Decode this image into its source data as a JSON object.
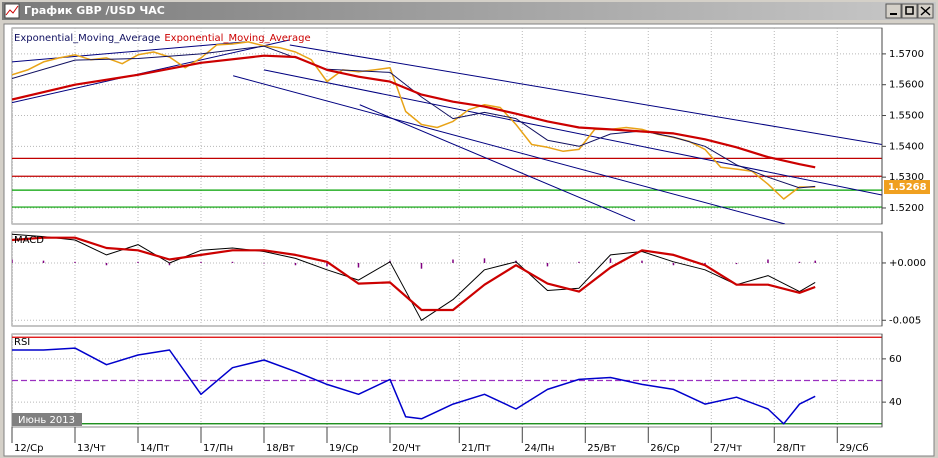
{
  "window": {
    "title": "График GBP /USD ЧАС"
  },
  "period_label": "Июнь 2013",
  "chart_data": [
    {
      "type": "line",
      "xlim": [
        0,
        13.81
      ],
      "ylim": [
        1.5148,
        1.5784
      ],
      "yticks": [
        {
          "value": 1.52,
          "label": "1.5200"
        },
        {
          "value": 1.53,
          "label": "1.5300"
        },
        {
          "value": 1.54,
          "label": "1.5400"
        },
        {
          "value": 1.55,
          "label": "1.5500"
        },
        {
          "value": 1.56,
          "label": "1.5600"
        },
        {
          "value": 1.57,
          "label": "1.5700"
        }
      ],
      "grid": true,
      "last_price": 1.5268,
      "levels": [
        {
          "value": 1.5361,
          "color": "#c00000"
        },
        {
          "value": 1.5303,
          "color": "#c00000"
        },
        {
          "value": 1.5258,
          "color": "#00a000"
        },
        {
          "value": 1.5203,
          "color": "#00a000"
        }
      ],
      "trend_lines": [
        {
          "x": [
            0,
            4.4
          ],
          "values": [
            1.5542,
            1.5745
          ],
          "color": "#000080"
        },
        {
          "x": [
            0,
            3.7
          ],
          "values": [
            1.5674,
            1.5739
          ],
          "color": "#000080"
        },
        {
          "x": [
            4.41,
            13.81
          ],
          "values": [
            1.5729,
            1.5406
          ],
          "color": "#000080"
        },
        {
          "x": [
            3.51,
            12.27
          ],
          "values": [
            1.5629,
            1.5148
          ],
          "color": "#000080"
        },
        {
          "x": [
            5.52,
            9.89
          ],
          "values": [
            1.5535,
            1.5158
          ],
          "color": "#000080"
        },
        {
          "x": [
            4.0,
            13.81
          ],
          "values": [
            1.5648,
            1.5242
          ],
          "color": "#000080"
        }
      ],
      "series": [
        {
          "color": "#e8a317",
          "width": 1.5,
          "x": [
            0,
            0.25,
            0.5,
            0.75,
            1,
            1.25,
            1.5,
            1.75,
            2,
            2.25,
            2.5,
            2.75,
            3,
            3.25,
            3.5,
            3.75,
            4,
            4.25,
            4.5,
            4.75,
            5,
            5.25,
            5.5,
            5.75,
            6,
            6.25,
            6.5,
            6.75,
            7,
            7.25,
            7.5,
            7.75,
            8,
            8.25,
            8.5,
            8.75,
            9,
            9.25,
            9.5,
            9.75,
            10,
            10.25,
            10.5,
            10.75,
            11,
            11.25,
            11.5,
            11.75,
            12,
            12.25,
            12.5,
            12.75
          ],
          "values": [
            1.5632,
            1.5648,
            1.5674,
            1.5687,
            1.5697,
            1.5681,
            1.5687,
            1.5668,
            1.5697,
            1.5706,
            1.569,
            1.5655,
            1.5687,
            1.5729,
            1.5732,
            1.5739,
            1.5726,
            1.572,
            1.5706,
            1.5681,
            1.561,
            1.5648,
            1.5642,
            1.5648,
            1.5655,
            1.5513,
            1.5471,
            1.5461,
            1.5481,
            1.5519,
            1.5535,
            1.5526,
            1.5471,
            1.5406,
            1.5397,
            1.5384,
            1.539,
            1.5455,
            1.5455,
            1.5461,
            1.5455,
            1.5439,
            1.5429,
            1.5416,
            1.539,
            1.5332,
            1.5326,
            1.5319,
            1.5277,
            1.5229,
            1.5268,
            1.5268
          ]
        },
        {
          "name": "Exponential_Moving_Average",
          "color": "#101060",
          "width": 1,
          "x": [
            0,
            1,
            2,
            3,
            4,
            5,
            6,
            6.5,
            7,
            7.5,
            8,
            8.5,
            9,
            9.5,
            10,
            10.5,
            11,
            11.5,
            12,
            12.5,
            12.75
          ],
          "values": [
            1.562,
            1.568,
            1.5685,
            1.57,
            1.5725,
            1.565,
            1.564,
            1.556,
            1.549,
            1.551,
            1.549,
            1.542,
            1.54,
            1.544,
            1.545,
            1.543,
            1.54,
            1.534,
            1.53,
            1.5265,
            1.527
          ]
        },
        {
          "name": "Exponential_Moving_Average",
          "color": "#cc0000",
          "width": 2.2,
          "x": [
            0,
            1,
            2,
            3,
            4,
            4.5,
            5,
            5.5,
            6,
            6.5,
            7,
            7.5,
            8,
            8.5,
            9,
            9.5,
            10,
            10.5,
            11,
            11.5,
            12,
            12.5,
            12.75
          ],
          "values": [
            1.5552,
            1.56,
            1.5632,
            1.5671,
            1.5694,
            1.569,
            1.5648,
            1.5626,
            1.561,
            1.5568,
            1.5545,
            1.5529,
            1.5506,
            1.5481,
            1.5461,
            1.5455,
            1.5448,
            1.5442,
            1.5423,
            1.5397,
            1.5365,
            1.5342,
            1.5332
          ]
        }
      ]
    },
    {
      "type": "line",
      "label": "MACD",
      "xlim": [
        0,
        13.81
      ],
      "ylim": [
        -0.0055,
        0.0027
      ],
      "yticks": [
        {
          "value": 0,
          "label": "+0.000"
        },
        {
          "value": -0.005,
          "label": "-0.005"
        }
      ],
      "grid": true,
      "series": [
        {
          "kind": "bar",
          "color": "#800080",
          "x": [
            0,
            0.5,
            1,
            1.5,
            2,
            2.5,
            3,
            3.5,
            4,
            4.5,
            5,
            5.5,
            6,
            6.5,
            7,
            7.5,
            8,
            8.5,
            9,
            9.5,
            10,
            10.5,
            11,
            11.5,
            12,
            12.5,
            12.75
          ],
          "values": [
            0.0003,
            0.0002,
            0.0001,
            -0.0002,
            0.0001,
            -0.0002,
            0.0001,
            0.0001,
            0,
            -0.0002,
            -0.0003,
            -0.0004,
            0.0002,
            -0.0005,
            0.0003,
            0.0004,
            0.0002,
            -0.0003,
            0.0001,
            0.0004,
            0.0002,
            -0.0002,
            -0.0002,
            -0.0001,
            0.0003,
            0.0001,
            0.0002
          ]
        },
        {
          "color": "#000000",
          "width": 1,
          "x": [
            0,
            0.5,
            1,
            1.5,
            2,
            2.5,
            3,
            3.5,
            4,
            4.5,
            5,
            5.5,
            6,
            6.5,
            7,
            7.5,
            8,
            8.5,
            9,
            9.5,
            10,
            10.5,
            11,
            11.5,
            12,
            12.5,
            12.75
          ],
          "values": [
            0.0025,
            0.0023,
            0.002,
            0.0007,
            0.0016,
            0,
            0.0011,
            0.0013,
            0.001,
            0.0004,
            -0.0006,
            -0.0015,
            0.0001,
            -0.005,
            -0.0032,
            -0.0006,
            0.0001,
            -0.0024,
            -0.0022,
            0.0007,
            0.001,
            0.0001,
            -0.0006,
            -0.0019,
            -0.0011,
            -0.0025,
            -0.0017
          ]
        },
        {
          "color": "#cc0000",
          "width": 2.2,
          "x": [
            0,
            0.5,
            1,
            1.5,
            2,
            2.5,
            3,
            3.5,
            4,
            4.5,
            5,
            5.5,
            6,
            6.5,
            7,
            7.5,
            8,
            8.5,
            9,
            9.5,
            10,
            10.5,
            11,
            11.5,
            12,
            12.5,
            12.75
          ],
          "values": [
            0.002,
            0.0022,
            0.0022,
            0.0013,
            0.0011,
            0.0003,
            0.0007,
            0.0011,
            0.0011,
            0.0007,
            0.0001,
            -0.0018,
            -0.0017,
            -0.0041,
            -0.0041,
            -0.0019,
            -0.0002,
            -0.0018,
            -0.0025,
            -0.0004,
            0.0011,
            0.0007,
            -0.0002,
            -0.0019,
            -0.0019,
            -0.0026,
            -0.0021
          ]
        }
      ]
    },
    {
      "type": "line",
      "label": "RSI",
      "xlim": [
        0,
        13.81
      ],
      "ylim": [
        28.5,
        71.5
      ],
      "yticks": [
        40,
        60
      ],
      "xticks": [
        {
          "value": 0,
          "label": "12/Ср"
        },
        {
          "value": 1,
          "label": "13/Чт"
        },
        {
          "value": 2,
          "label": "14/Пт"
        },
        {
          "value": 3,
          "label": "17/Пн"
        },
        {
          "value": 4,
          "label": "18/Вт"
        },
        {
          "value": 5,
          "label": "19/Ср"
        },
        {
          "value": 6,
          "label": "20/Чт"
        },
        {
          "value": 7.1,
          "label": "21/Пт"
        },
        {
          "value": 8.1,
          "label": "24/Пн"
        },
        {
          "value": 9.1,
          "label": "25/Вт"
        },
        {
          "value": 10.1,
          "label": "26/Ср"
        },
        {
          "value": 11.1,
          "label": "27/Чт"
        },
        {
          "value": 12.1,
          "label": "28/Пт"
        },
        {
          "value": 13.1,
          "label": "29/Сб"
        }
      ],
      "grid": true,
      "levels": [
        {
          "value": 70,
          "color": "#dd0000"
        },
        {
          "value": 50,
          "color": "#9b30c0",
          "dash": true
        },
        {
          "value": 30,
          "color": "#008000"
        }
      ],
      "series": [
        {
          "color": "#0000cc",
          "width": 1.5,
          "x": [
            0,
            0.5,
            1,
            1.5,
            2,
            2.5,
            3,
            3.5,
            4,
            4.5,
            5,
            5.5,
            6,
            6.25,
            6.5,
            7,
            7.5,
            8,
            8.5,
            9,
            9.5,
            10,
            10.5,
            11,
            11.5,
            12,
            12.25,
            12.5,
            12.75
          ],
          "values": [
            64.1,
            64.1,
            65,
            57.3,
            61.8,
            64.1,
            43.6,
            55.9,
            59.5,
            54.1,
            48.2,
            43.6,
            50.5,
            33.2,
            32.3,
            39.1,
            43.6,
            36.8,
            45.9,
            50.5,
            51.4,
            48.2,
            45.9,
            39.1,
            42.3,
            36.8,
            30,
            39.1,
            42.7
          ]
        }
      ]
    }
  ]
}
